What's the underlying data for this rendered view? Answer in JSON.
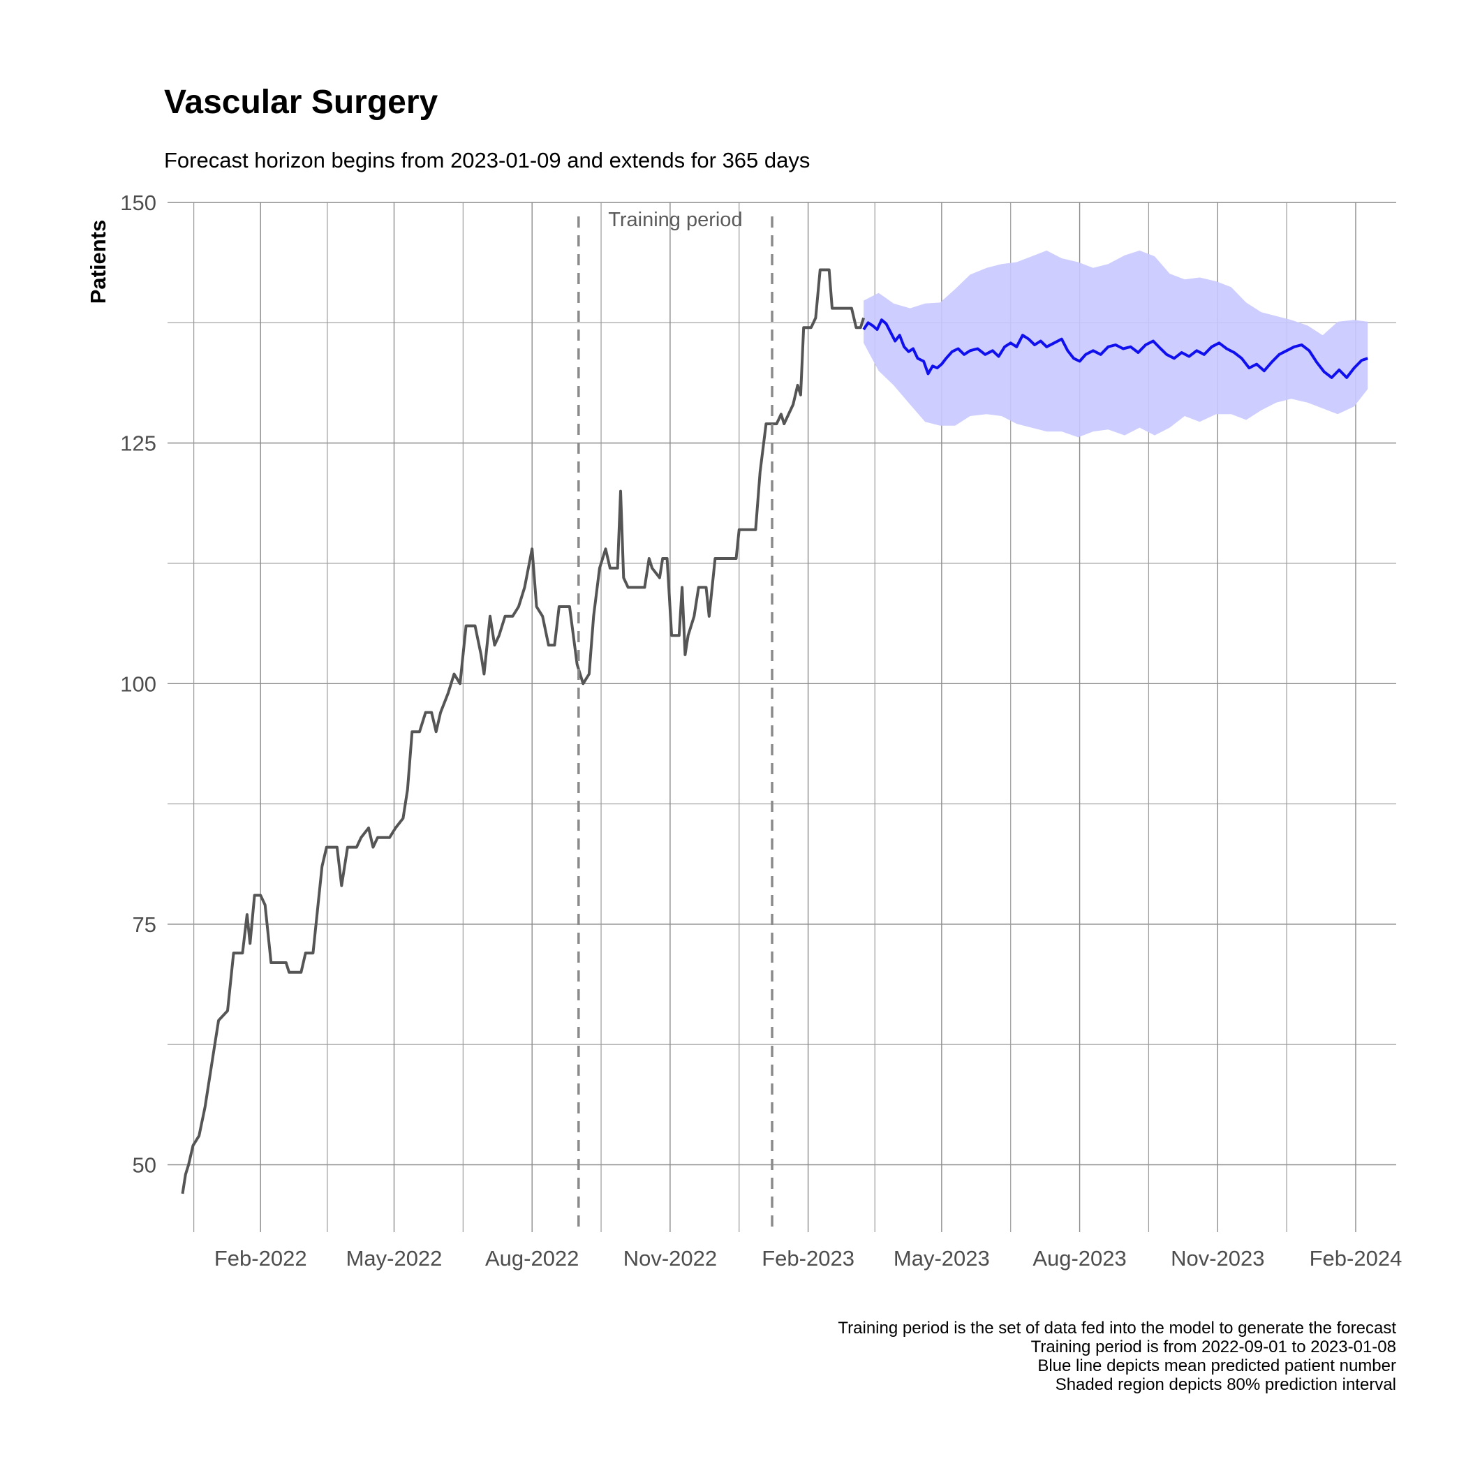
{
  "chart_data": {
    "type": "line",
    "title": "Vascular Surgery",
    "subtitle": "Forecast horizon begins from 2023-01-09 and extends for 365 days",
    "ylabel": "Patients",
    "xlabel": "",
    "ylim": [
      43,
      150
    ],
    "xlim": [
      "2021-12-01",
      "2024-02-28"
    ],
    "y_ticks": [
      50,
      75,
      100,
      125,
      150
    ],
    "y_minor_grid": [
      62.5,
      87.5,
      112.5,
      137.5
    ],
    "x_ticks": [
      {
        "date": "2022-02-01",
        "label": "Feb-2022"
      },
      {
        "date": "2022-05-01",
        "label": "May-2022"
      },
      {
        "date": "2022-08-01",
        "label": "Aug-2022"
      },
      {
        "date": "2022-11-01",
        "label": "Nov-2022"
      },
      {
        "date": "2023-02-01",
        "label": "Feb-2023"
      },
      {
        "date": "2023-05-01",
        "label": "May-2023"
      },
      {
        "date": "2023-08-01",
        "label": "Aug-2023"
      },
      {
        "date": "2023-11-01",
        "label": "Nov-2023"
      },
      {
        "date": "2024-02-01",
        "label": "Feb-2024"
      }
    ],
    "grid": true,
    "training_period": {
      "start": "2022-09-01",
      "end": "2023-01-08",
      "label": "Training period"
    },
    "series": [
      {
        "color": "#555555",
        "points": [
          [
            "2021-12-11",
            47
          ],
          [
            "2021-12-13",
            49
          ],
          [
            "2021-12-15",
            50
          ],
          [
            "2021-12-18",
            52
          ],
          [
            "2021-12-22",
            53
          ],
          [
            "2021-12-26",
            56
          ],
          [
            "2022-01-01",
            62
          ],
          [
            "2022-01-04",
            65
          ],
          [
            "2022-01-10",
            66
          ],
          [
            "2022-01-14",
            72
          ],
          [
            "2022-01-20",
            72
          ],
          [
            "2022-01-23",
            76
          ],
          [
            "2022-01-25",
            73
          ],
          [
            "2022-01-28",
            78
          ],
          [
            "2022-02-01",
            78
          ],
          [
            "2022-02-04",
            77
          ],
          [
            "2022-02-08",
            71
          ],
          [
            "2022-02-18",
            71
          ],
          [
            "2022-02-20",
            70
          ],
          [
            "2022-02-28",
            70
          ],
          [
            "2022-03-03",
            72
          ],
          [
            "2022-03-08",
            72
          ],
          [
            "2022-03-14",
            81
          ],
          [
            "2022-03-17",
            83
          ],
          [
            "2022-03-24",
            83
          ],
          [
            "2022-03-27",
            79
          ],
          [
            "2022-03-31",
            83
          ],
          [
            "2022-04-06",
            83
          ],
          [
            "2022-04-09",
            84
          ],
          [
            "2022-04-14",
            85
          ],
          [
            "2022-04-17",
            83
          ],
          [
            "2022-04-20",
            84
          ],
          [
            "2022-04-28",
            84
          ],
          [
            "2022-05-02",
            85
          ],
          [
            "2022-05-07",
            86
          ],
          [
            "2022-05-10",
            89
          ],
          [
            "2022-05-13",
            95
          ],
          [
            "2022-05-18",
            95
          ],
          [
            "2022-05-22",
            97
          ],
          [
            "2022-05-26",
            97
          ],
          [
            "2022-05-29",
            95
          ],
          [
            "2022-06-01",
            97
          ],
          [
            "2022-06-06",
            99
          ],
          [
            "2022-06-10",
            101
          ],
          [
            "2022-06-14",
            100
          ],
          [
            "2022-06-18",
            106
          ],
          [
            "2022-06-24",
            106
          ],
          [
            "2022-06-28",
            103
          ],
          [
            "2022-06-30",
            101
          ],
          [
            "2022-07-04",
            107
          ],
          [
            "2022-07-07",
            104
          ],
          [
            "2022-07-10",
            105
          ],
          [
            "2022-07-14",
            107
          ],
          [
            "2022-07-19",
            107
          ],
          [
            "2022-07-23",
            108
          ],
          [
            "2022-07-27",
            110
          ],
          [
            "2022-08-01",
            114
          ],
          [
            "2022-08-04",
            108
          ],
          [
            "2022-08-08",
            107
          ],
          [
            "2022-08-12",
            104
          ],
          [
            "2022-08-16",
            104
          ],
          [
            "2022-08-19",
            108
          ],
          [
            "2022-08-26",
            108
          ],
          [
            "2022-08-31",
            102
          ],
          [
            "2022-09-04",
            100
          ],
          [
            "2022-09-08",
            101
          ],
          [
            "2022-09-11",
            107
          ],
          [
            "2022-09-15",
            112
          ],
          [
            "2022-09-19",
            114
          ],
          [
            "2022-09-22",
            112
          ],
          [
            "2022-09-27",
            112
          ],
          [
            "2022-09-29",
            120
          ],
          [
            "2022-10-01",
            111
          ],
          [
            "2022-10-04",
            110
          ],
          [
            "2022-10-15",
            110
          ],
          [
            "2022-10-18",
            113
          ],
          [
            "2022-10-20",
            112
          ],
          [
            "2022-10-25",
            111
          ],
          [
            "2022-10-27",
            113
          ],
          [
            "2022-10-30",
            113
          ],
          [
            "2022-11-02",
            105
          ],
          [
            "2022-11-07",
            105
          ],
          [
            "2022-11-09",
            110
          ],
          [
            "2022-11-11",
            103
          ],
          [
            "2022-11-13",
            105
          ],
          [
            "2022-11-17",
            107
          ],
          [
            "2022-11-20",
            110
          ],
          [
            "2022-11-25",
            110
          ],
          [
            "2022-11-27",
            107
          ],
          [
            "2022-12-01",
            113
          ],
          [
            "2022-12-15",
            113
          ],
          [
            "2022-12-17",
            116
          ],
          [
            "2022-12-28",
            116
          ],
          [
            "2022-12-31",
            122
          ],
          [
            "2023-01-04",
            127
          ],
          [
            "2023-01-11",
            127
          ],
          [
            "2023-01-14",
            128
          ],
          [
            "2023-01-16",
            127
          ],
          [
            "2023-01-22",
            129
          ],
          [
            "2023-01-25",
            131
          ],
          [
            "2023-01-27",
            130
          ],
          [
            "2023-01-29",
            137
          ],
          [
            "2023-02-03",
            137
          ],
          [
            "2023-02-06",
            138
          ],
          [
            "2023-02-09",
            143
          ],
          [
            "2023-02-15",
            143
          ],
          [
            "2023-02-17",
            139
          ],
          [
            "2023-03-02",
            139
          ],
          [
            "2023-03-05",
            137
          ],
          [
            "2023-03-08",
            137
          ],
          [
            "2023-03-10",
            138
          ]
        ]
      },
      {
        "color": "#1010ee",
        "role": "mean",
        "points": [
          [
            "2023-03-10",
            136.8
          ],
          [
            "2023-03-13",
            137.5
          ],
          [
            "2023-03-16",
            137.2
          ],
          [
            "2023-03-19",
            136.8
          ],
          [
            "2023-03-22",
            137.8
          ],
          [
            "2023-03-25",
            137.4
          ],
          [
            "2023-03-28",
            136.5
          ],
          [
            "2023-03-31",
            135.6
          ],
          [
            "2023-04-03",
            136.2
          ],
          [
            "2023-04-06",
            135.0
          ],
          [
            "2023-04-09",
            134.5
          ],
          [
            "2023-04-12",
            134.8
          ],
          [
            "2023-04-15",
            133.8
          ],
          [
            "2023-04-19",
            133.5
          ],
          [
            "2023-04-22",
            132.2
          ],
          [
            "2023-04-25",
            133.0
          ],
          [
            "2023-04-28",
            132.8
          ],
          [
            "2023-05-01",
            133.2
          ],
          [
            "2023-05-04",
            133.8
          ],
          [
            "2023-05-08",
            134.5
          ],
          [
            "2023-05-12",
            134.8
          ],
          [
            "2023-05-16",
            134.2
          ],
          [
            "2023-05-20",
            134.6
          ],
          [
            "2023-05-25",
            134.8
          ],
          [
            "2023-05-30",
            134.2
          ],
          [
            "2023-06-04",
            134.6
          ],
          [
            "2023-06-08",
            134.0
          ],
          [
            "2023-06-12",
            135.0
          ],
          [
            "2023-06-16",
            135.4
          ],
          [
            "2023-06-20",
            135.0
          ],
          [
            "2023-06-24",
            136.2
          ],
          [
            "2023-06-28",
            135.8
          ],
          [
            "2023-07-02",
            135.2
          ],
          [
            "2023-07-06",
            135.6
          ],
          [
            "2023-07-10",
            135.0
          ],
          [
            "2023-07-15",
            135.4
          ],
          [
            "2023-07-20",
            135.8
          ],
          [
            "2023-07-24",
            134.6
          ],
          [
            "2023-07-28",
            133.8
          ],
          [
            "2023-08-01",
            133.5
          ],
          [
            "2023-08-05",
            134.2
          ],
          [
            "2023-08-10",
            134.6
          ],
          [
            "2023-08-15",
            134.2
          ],
          [
            "2023-08-20",
            135.0
          ],
          [
            "2023-08-25",
            135.2
          ],
          [
            "2023-08-30",
            134.8
          ],
          [
            "2023-09-04",
            135.0
          ],
          [
            "2023-09-09",
            134.4
          ],
          [
            "2023-09-14",
            135.2
          ],
          [
            "2023-09-19",
            135.6
          ],
          [
            "2023-09-24",
            134.8
          ],
          [
            "2023-09-28",
            134.2
          ],
          [
            "2023-10-03",
            133.8
          ],
          [
            "2023-10-08",
            134.4
          ],
          [
            "2023-10-13",
            134.0
          ],
          [
            "2023-10-18",
            134.6
          ],
          [
            "2023-10-23",
            134.2
          ],
          [
            "2023-10-28",
            135.0
          ],
          [
            "2023-11-02",
            135.4
          ],
          [
            "2023-11-07",
            134.8
          ],
          [
            "2023-11-12",
            134.4
          ],
          [
            "2023-11-17",
            133.8
          ],
          [
            "2023-11-22",
            132.8
          ],
          [
            "2023-11-27",
            133.2
          ],
          [
            "2023-12-02",
            132.5
          ],
          [
            "2023-12-07",
            133.4
          ],
          [
            "2023-12-12",
            134.2
          ],
          [
            "2023-12-17",
            134.6
          ],
          [
            "2023-12-22",
            135.0
          ],
          [
            "2023-12-27",
            135.2
          ],
          [
            "2024-01-01",
            134.6
          ],
          [
            "2024-01-06",
            133.4
          ],
          [
            "2024-01-11",
            132.4
          ],
          [
            "2024-01-16",
            131.8
          ],
          [
            "2024-01-21",
            132.6
          ],
          [
            "2024-01-26",
            131.8
          ],
          [
            "2024-01-31",
            132.8
          ],
          [
            "2024-02-05",
            133.6
          ],
          [
            "2024-02-09",
            133.8
          ]
        ]
      }
    ],
    "interval": {
      "label": "80% prediction interval",
      "color": "#c8c8ff",
      "points": [
        [
          "2023-03-10",
          135.4,
          139.8
        ],
        [
          "2023-03-20",
          132.5,
          140.6
        ],
        [
          "2023-03-30",
          131.0,
          139.5
        ],
        [
          "2023-04-10",
          129.0,
          139.0
        ],
        [
          "2023-04-20",
          127.2,
          139.5
        ],
        [
          "2023-04-30",
          126.8,
          139.6
        ],
        [
          "2023-05-10",
          126.8,
          141.0
        ],
        [
          "2023-05-20",
          127.8,
          142.5
        ],
        [
          "2023-05-31",
          128.0,
          143.2
        ],
        [
          "2023-06-10",
          127.8,
          143.6
        ],
        [
          "2023-06-20",
          127.0,
          143.8
        ],
        [
          "2023-06-30",
          126.6,
          144.4
        ],
        [
          "2023-07-10",
          126.2,
          145.0
        ],
        [
          "2023-07-20",
          126.2,
          144.2
        ],
        [
          "2023-07-31",
          125.6,
          143.8
        ],
        [
          "2023-08-10",
          126.2,
          143.2
        ],
        [
          "2023-08-20",
          126.4,
          143.6
        ],
        [
          "2023-08-31",
          125.8,
          144.5
        ],
        [
          "2023-09-10",
          126.6,
          145.0
        ],
        [
          "2023-09-20",
          125.8,
          144.4
        ],
        [
          "2023-09-30",
          126.6,
          142.6
        ],
        [
          "2023-10-10",
          127.8,
          142.0
        ],
        [
          "2023-10-20",
          127.2,
          142.2
        ],
        [
          "2023-10-31",
          128.0,
          141.8
        ],
        [
          "2023-11-10",
          128.0,
          141.2
        ],
        [
          "2023-11-20",
          127.4,
          139.6
        ],
        [
          "2023-11-30",
          128.4,
          138.6
        ],
        [
          "2023-12-10",
          129.2,
          138.2
        ],
        [
          "2023-12-20",
          129.6,
          137.8
        ],
        [
          "2023-12-31",
          129.2,
          137.2
        ],
        [
          "2024-01-10",
          128.6,
          136.2
        ],
        [
          "2024-01-20",
          128.0,
          137.6
        ],
        [
          "2024-01-31",
          128.8,
          137.8
        ],
        [
          "2024-02-09",
          130.6,
          137.6
        ]
      ]
    }
  },
  "caption": [
    "Training period is the set of data fed into the model to generate the forecast",
    "Training period is from 2022-09-01 to 2023-01-08",
    "Blue line depicts mean predicted patient number",
    "Shaded region depicts 80% prediction interval"
  ]
}
